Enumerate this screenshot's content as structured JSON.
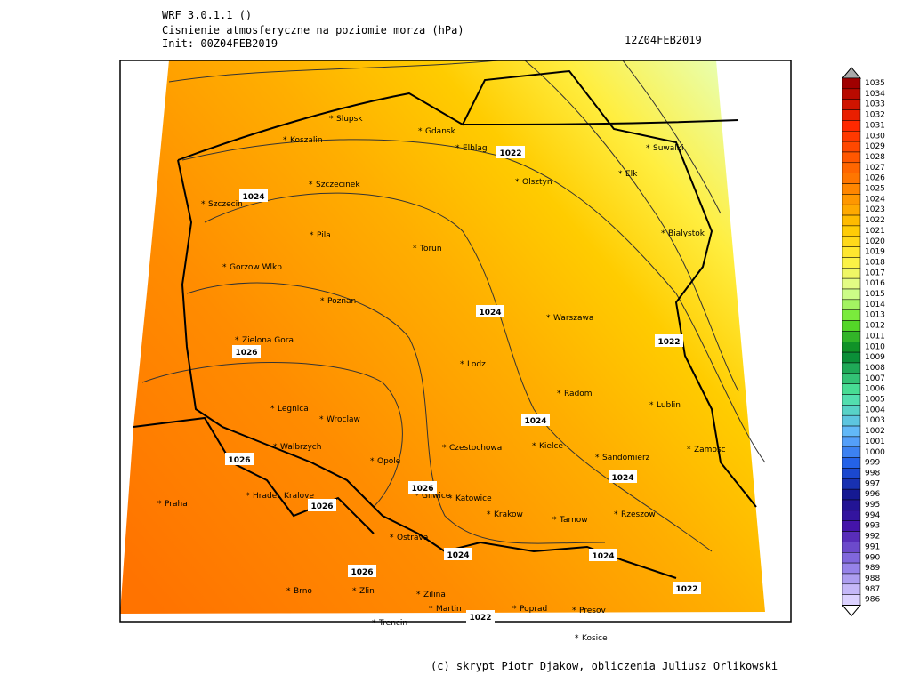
{
  "header": {
    "model": "WRF 3.0.1.1 ()",
    "title": "Cisnienie atmosferyczne na poziomie morza (hPa)",
    "init": "Init: 00Z04FEB2019",
    "valid": "12Z04FEB2019"
  },
  "cities": [
    "Slupsk",
    "Gdansk",
    "Koszalin",
    "Elblag",
    "Suwalki",
    "Olsztyn",
    "Elk",
    "Szczecinek",
    "Szczecin",
    "Pila",
    "Bialystok",
    "Torun",
    "Gorzow Wlkp",
    "Poznan",
    "Warszawa",
    "Zielona Gora",
    "Lodz",
    "Radom",
    "Lublin",
    "Legnica",
    "Wroclaw",
    "Kielce",
    "Walbrzych",
    "Czestochowa",
    "Zamosc",
    "Opole",
    "Sandomierz",
    "Gliwice",
    "Katowice",
    "Praha",
    "Hradec Kralove",
    "Krakow",
    "Tarnow",
    "Rzeszow",
    "Ostrava",
    "Brno",
    "Zlin",
    "Zilina",
    "Martin",
    "Poprad",
    "Presov",
    "Trencin",
    "Kosice"
  ],
  "contour_labels": [
    1022,
    1024,
    1024,
    1022,
    1026,
    1024,
    1026,
    1024,
    1026,
    1026,
    1024,
    1024,
    1026,
    1022,
    1022
  ],
  "colorbar": {
    "labels": [
      1035,
      1034,
      1033,
      1032,
      1031,
      1030,
      1029,
      1028,
      1027,
      1026,
      1025,
      1024,
      1023,
      1022,
      1021,
      1020,
      1019,
      1018,
      1017,
      1016,
      1015,
      1014,
      1013,
      1012,
      1011,
      1010,
      1009,
      1008,
      1007,
      1006,
      1005,
      1004,
      1003,
      1002,
      1001,
      1000,
      999,
      998,
      997,
      996,
      995,
      994,
      993,
      992,
      991,
      990,
      989,
      988,
      987,
      986
    ]
  },
  "credit": "(c) skrypt Piotr Djakow, obliczenia Juliusz Orlikowski"
}
